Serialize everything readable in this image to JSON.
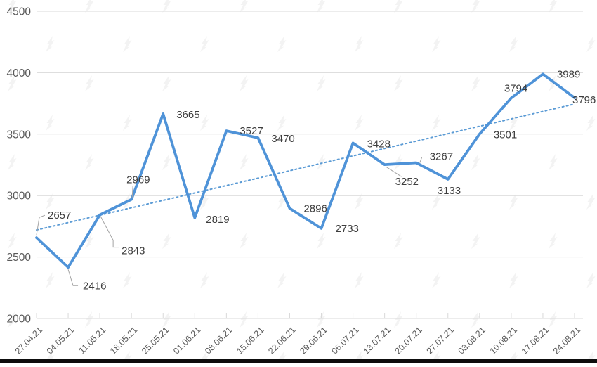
{
  "chart_data": {
    "type": "line",
    "title": "",
    "categories": [
      "27.04.21",
      "04.05.21",
      "11.05.21",
      "18.05.21",
      "25.05.21",
      "01.06.21",
      "08.06.21",
      "15.06.21",
      "22.06.21",
      "29.06.21",
      "06.07.21",
      "13.07.21",
      "20.07.21",
      "27.07.21",
      "03.08.21",
      "10.08.21",
      "17.08.21",
      "24.08.21"
    ],
    "values": [
      2657,
      2416,
      2843,
      2969,
      3665,
      2819,
      3527,
      3470,
      2896,
      2733,
      3428,
      3252,
      3267,
      3133,
      3501,
      3794,
      3989,
      3796
    ],
    "yticks": [
      2000,
      2500,
      3000,
      3500,
      4000,
      4500
    ],
    "ylim": [
      2000,
      4500
    ],
    "xlabel": "",
    "ylabel": "",
    "grid": "horizontal",
    "legend_position": "none",
    "data_labels": true,
    "trendline": {
      "type": "linear",
      "style": "dotted",
      "start_value": 2720,
      "end_value": 3745
    }
  },
  "style": {
    "line_color": "#4f93d8",
    "trend_color": "#5b9bd5",
    "grid_color": "#d9d9d9",
    "axis_text_color": "#595959",
    "data_label_color": "#3d3d3d",
    "leader_color": "#a3a3a3",
    "background": "#ffffff",
    "bottom_bar_color": "#0d0d0d"
  },
  "watermark": {
    "icon": "forklog-logo",
    "tiled": true
  }
}
